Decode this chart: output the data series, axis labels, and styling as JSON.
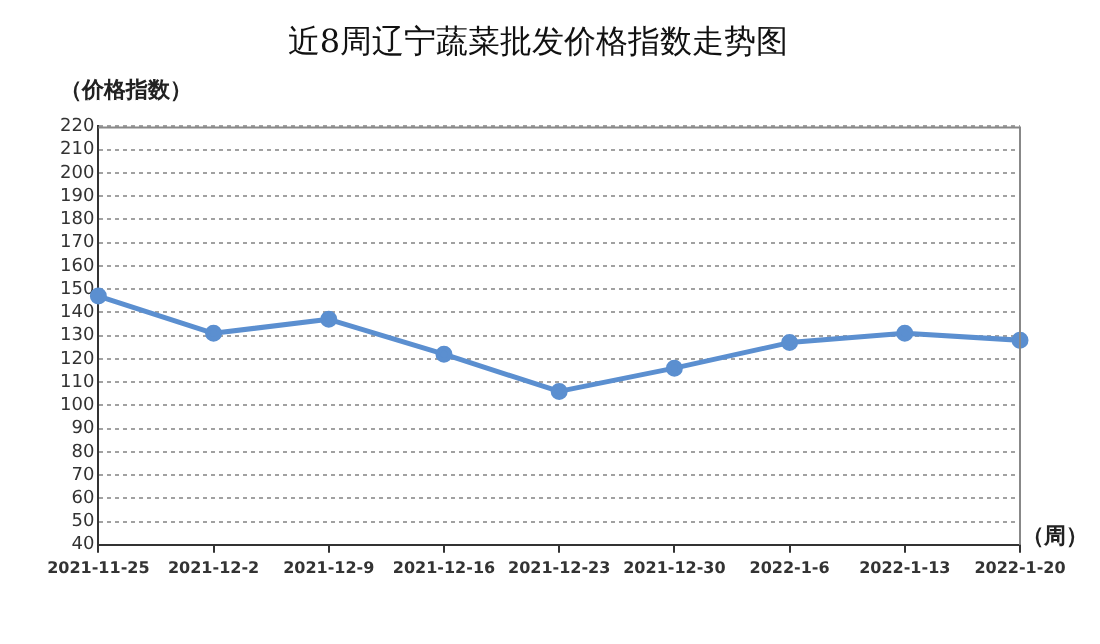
{
  "chart_data": {
    "type": "line",
    "title": "近8周辽宁蔬菜批发价格指数走势图",
    "ylabel": "（价格指数）",
    "xlabel": "（周）",
    "categories": [
      "2021-11-25",
      "2021-12-2",
      "2021-12-9",
      "2021-12-16",
      "2021-12-23",
      "2021-12-30",
      "2022-1-6",
      "2022-1-13",
      "2022-1-20"
    ],
    "series": [
      {
        "color": "#5b8fd0",
        "values": [
          147,
          131,
          137,
          122,
          106,
          116,
          127,
          131,
          128
        ]
      }
    ],
    "ylim": [
      40,
      220
    ],
    "yticks": [
      40,
      50,
      60,
      70,
      80,
      90,
      100,
      110,
      120,
      130,
      140,
      150,
      160,
      170,
      180,
      190,
      200,
      210,
      220
    ],
    "grid": "y",
    "legend": false,
    "marker": "circle",
    "line_style": "solid"
  }
}
